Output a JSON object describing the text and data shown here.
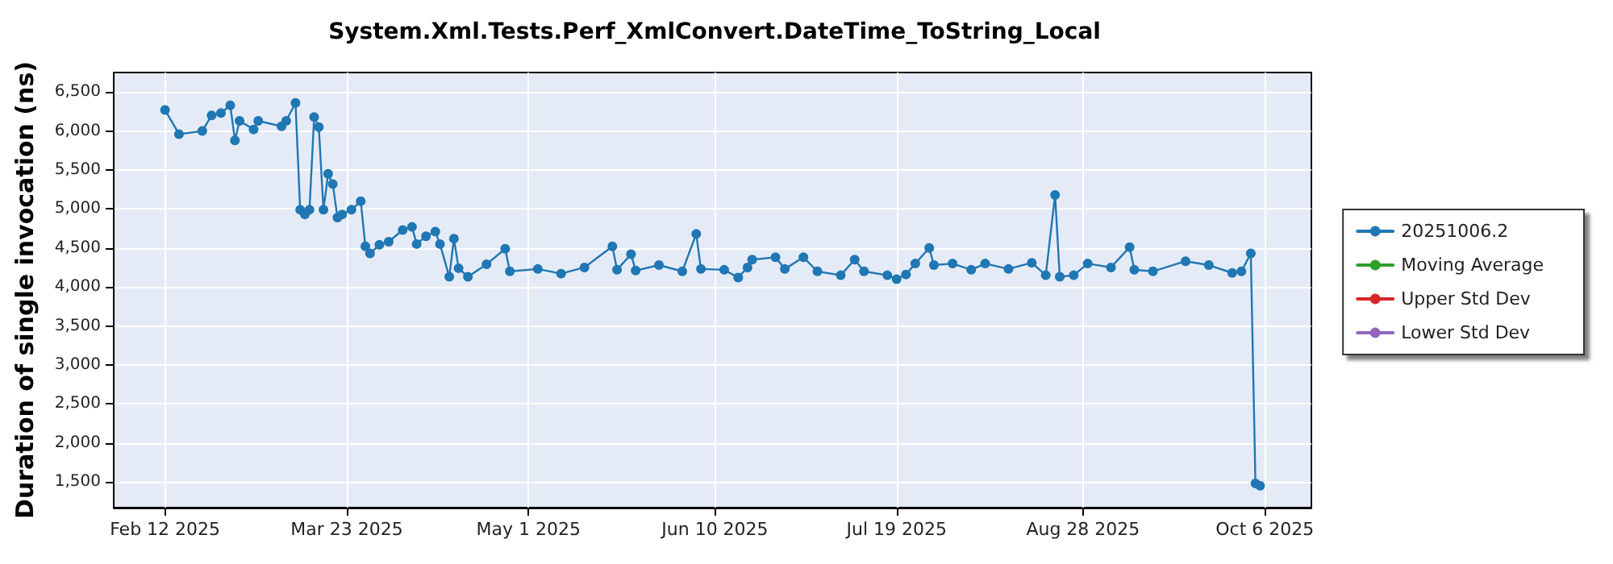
{
  "chart_data": {
    "type": "line",
    "title": "System.Xml.Tests.Perf_XmlConvert.DateTime_ToString_Local",
    "ylabel": "Duration of single invocation (ns)",
    "x": [
      "2025-02-12",
      "2025-02-15",
      "2025-02-20",
      "2025-02-22",
      "2025-02-24",
      "2025-02-26",
      "2025-02-27",
      "2025-02-28",
      "2025-03-03",
      "2025-03-04",
      "2025-03-09",
      "2025-03-10",
      "2025-03-12",
      "2025-03-13",
      "2025-03-14",
      "2025-03-15",
      "2025-03-16",
      "2025-03-17",
      "2025-03-18",
      "2025-03-19",
      "2025-03-20",
      "2025-03-21",
      "2025-03-22",
      "2025-03-24",
      "2025-03-26",
      "2025-03-27",
      "2025-03-28",
      "2025-03-30",
      "2025-04-01",
      "2025-04-04",
      "2025-04-06",
      "2025-04-07",
      "2025-04-09",
      "2025-04-11",
      "2025-04-12",
      "2025-04-14",
      "2025-04-15",
      "2025-04-16",
      "2025-04-18",
      "2025-04-22",
      "2025-04-26",
      "2025-04-27",
      "2025-05-03",
      "2025-05-08",
      "2025-05-13",
      "2025-05-19",
      "2025-05-20",
      "2025-05-23",
      "2025-05-24",
      "2025-05-29",
      "2025-06-03",
      "2025-06-06",
      "2025-06-07",
      "2025-06-12",
      "2025-06-15",
      "2025-06-17",
      "2025-06-18",
      "2025-06-23",
      "2025-06-25",
      "2025-06-29",
      "2025-07-02",
      "2025-07-07",
      "2025-07-10",
      "2025-07-12",
      "2025-07-17",
      "2025-07-19",
      "2025-07-21",
      "2025-07-23",
      "2025-07-26",
      "2025-07-27",
      "2025-07-31",
      "2025-08-04",
      "2025-08-07",
      "2025-08-12",
      "2025-08-17",
      "2025-08-20",
      "2025-08-22",
      "2025-08-23",
      "2025-08-26",
      "2025-08-29",
      "2025-09-03",
      "2025-09-07",
      "2025-09-08",
      "2025-09-12",
      "2025-09-19",
      "2025-09-24",
      "2025-09-29",
      "2025-10-01",
      "2025-10-03",
      "2025-10-04",
      "2025-10-05"
    ],
    "series": [
      {
        "name": "20251006.2",
        "color": "#1f77b4",
        "values": [
          6270,
          5960,
          6000,
          6200,
          6230,
          6330,
          5880,
          6130,
          6020,
          6130,
          6060,
          6130,
          6360,
          4990,
          4930,
          4990,
          6180,
          6050,
          4990,
          5450,
          5320,
          4890,
          4930,
          4990,
          5100,
          4520,
          4430,
          4540,
          4580,
          4730,
          4770,
          4550,
          4650,
          4710,
          4550,
          4130,
          4620,
          4240,
          4130,
          4290,
          4490,
          4200,
          4230,
          4170,
          4250,
          4520,
          4220,
          4420,
          4210,
          4280,
          4200,
          4680,
          4230,
          4220,
          4120,
          4250,
          4350,
          4380,
          4230,
          4380,
          4200,
          4150,
          4350,
          4200,
          4150,
          4100,
          4160,
          4300,
          4500,
          4280,
          4300,
          4220,
          4300,
          4230,
          4310,
          4150,
          5180,
          4130,
          4150,
          4300,
          4250,
          4510,
          4220,
          4200,
          4330,
          4280,
          4180,
          4200,
          4430,
          1480,
          1450
        ]
      },
      {
        "name": "Moving Average",
        "color": "#2ca02c",
        "values": [
          null,
          null,
          null,
          null,
          null,
          null,
          null,
          null,
          null,
          null,
          null,
          null,
          null,
          null,
          null,
          null,
          null,
          null,
          null,
          null,
          null,
          null,
          null,
          null,
          null,
          null,
          null,
          null,
          null,
          null,
          null,
          null,
          null,
          null,
          null,
          null,
          null,
          null,
          null,
          null,
          null,
          null,
          null,
          null,
          null,
          null,
          null,
          null,
          null,
          null,
          null,
          null,
          null,
          null,
          null,
          null,
          null,
          null,
          null,
          null,
          null,
          null,
          null,
          null,
          null,
          null,
          null,
          null,
          null,
          null,
          null,
          null,
          null,
          null,
          null,
          null,
          null,
          null,
          null,
          null,
          null,
          null,
          null,
          null,
          null,
          null,
          null,
          null,
          null,
          null,
          null
        ]
      },
      {
        "name": "Upper Std Dev",
        "color": "#d62728",
        "values": [
          null,
          null,
          null,
          null,
          null,
          null,
          null,
          null,
          null,
          null,
          null,
          null,
          null,
          null,
          null,
          null,
          null,
          null,
          null,
          null,
          null,
          null,
          null,
          null,
          null,
          null,
          null,
          null,
          null,
          null,
          null,
          null,
          null,
          null,
          null,
          null,
          null,
          null,
          null,
          null,
          null,
          null,
          null,
          null,
          null,
          null,
          null,
          null,
          null,
          null,
          null,
          null,
          null,
          null,
          null,
          null,
          null,
          null,
          null,
          null,
          null,
          null,
          null,
          null,
          null,
          null,
          null,
          null,
          null,
          null,
          null,
          null,
          null,
          null,
          null,
          null,
          null,
          null,
          null,
          null,
          null,
          null,
          null,
          null,
          null,
          null,
          null,
          null,
          null,
          null,
          null
        ]
      },
      {
        "name": "Lower Std Dev",
        "color": "#9467bd",
        "values": [
          null,
          null,
          null,
          null,
          null,
          null,
          null,
          null,
          null,
          null,
          null,
          null,
          null,
          null,
          null,
          null,
          null,
          null,
          null,
          null,
          null,
          null,
          null,
          null,
          null,
          null,
          null,
          null,
          null,
          null,
          null,
          null,
          null,
          null,
          null,
          null,
          null,
          null,
          null,
          null,
          null,
          null,
          null,
          null,
          null,
          null,
          null,
          null,
          null,
          null,
          null,
          null,
          null,
          null,
          null,
          null,
          null,
          null,
          null,
          null,
          null,
          null,
          null,
          null,
          null,
          null,
          null,
          null,
          null,
          null,
          null,
          null,
          null,
          null,
          null,
          null,
          null,
          null,
          null,
          null,
          null,
          null,
          null,
          null,
          null,
          null,
          null,
          null,
          null,
          null,
          null
        ]
      }
    ],
    "xlim": [
      "2025-02-01",
      "2025-10-16"
    ],
    "xticks": [
      {
        "value": "2025-02-12",
        "label": "Feb 12 2025"
      },
      {
        "value": "2025-03-23",
        "label": "Mar 23 2025"
      },
      {
        "value": "2025-05-01",
        "label": "May 1 2025"
      },
      {
        "value": "2025-06-10",
        "label": "Jun 10 2025"
      },
      {
        "value": "2025-07-19",
        "label": "Jul 19 2025"
      },
      {
        "value": "2025-08-28",
        "label": "Aug 28 2025"
      },
      {
        "value": "2025-10-06",
        "label": "Oct 6 2025"
      }
    ],
    "ylim": [
      1170,
      6750
    ],
    "yticks": [
      {
        "value": 1500,
        "label": "1,500"
      },
      {
        "value": 2000,
        "label": "2,000"
      },
      {
        "value": 2500,
        "label": "2,500"
      },
      {
        "value": 3000,
        "label": "3,000"
      },
      {
        "value": 3500,
        "label": "3,500"
      },
      {
        "value": 4000,
        "label": "4,000"
      },
      {
        "value": 4500,
        "label": "4,500"
      },
      {
        "value": 5000,
        "label": "5,000"
      },
      {
        "value": 5500,
        "label": "5,500"
      },
      {
        "value": 6000,
        "label": "6,000"
      },
      {
        "value": 6500,
        "label": "6,500"
      }
    ],
    "grid": true,
    "legend": "right",
    "marker": "circle",
    "line_style": "solid"
  }
}
